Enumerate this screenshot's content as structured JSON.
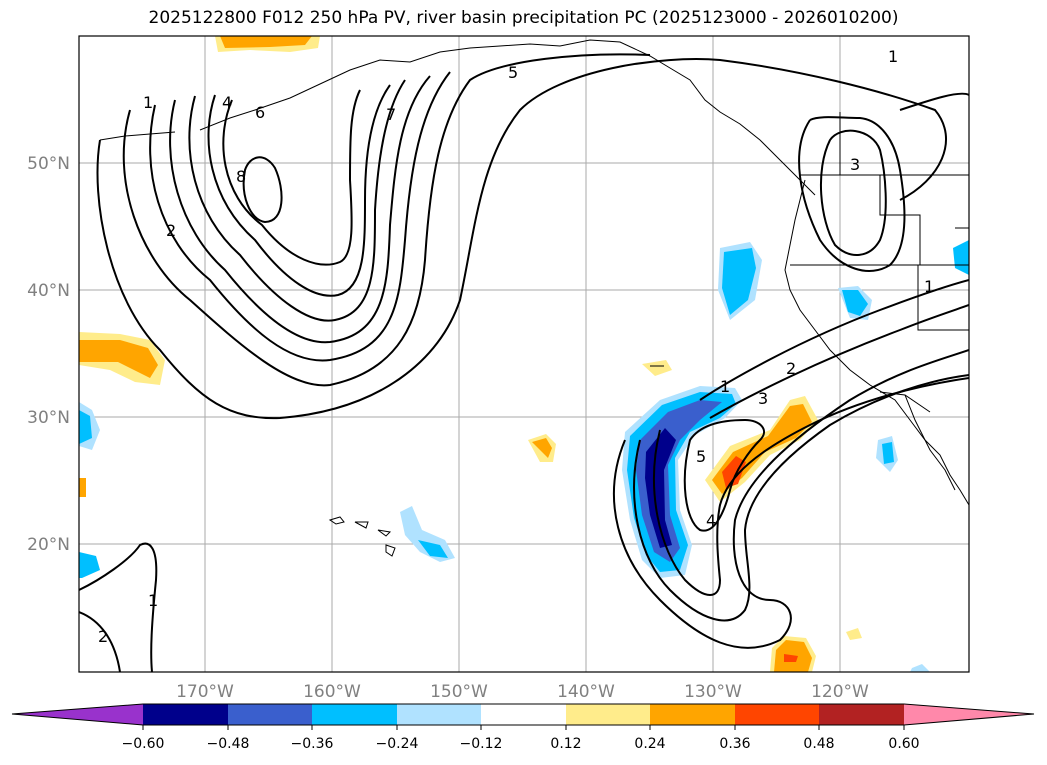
{
  "title": "2025122800 F012 250 hPa PV, river basin precipitation PC (2025123000 - 2026010200)",
  "map": {
    "lat_labels": [
      "50°N",
      "40°N",
      "30°N",
      "20°N"
    ],
    "lon_labels": [
      "170°W",
      "160°W",
      "150°W",
      "140°W",
      "130°W",
      "120°W"
    ],
    "contour_labels": [
      "1",
      "2",
      "4",
      "6",
      "8",
      "5",
      "7",
      "1",
      "3",
      "1",
      "1",
      "2",
      "3",
      "5",
      "4",
      "1",
      "2"
    ]
  },
  "colorbar": {
    "ticks": [
      "−0.60",
      "−0.48",
      "−0.36",
      "−0.24",
      "−0.12",
      "0.12",
      "0.24",
      "0.36",
      "0.48",
      "0.60"
    ],
    "colors": [
      "#9932CC",
      "#00008B",
      "#3A5FCD",
      "#00BFFF",
      "#B0E2FF",
      "#FFFFFF",
      "#FFEC8B",
      "#FFA500",
      "#FF4500",
      "#B22222",
      "#FF88AA"
    ]
  }
}
